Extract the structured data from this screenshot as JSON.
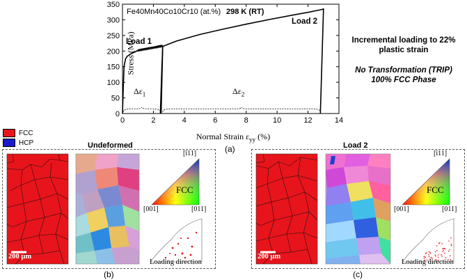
{
  "chart_data": {
    "type": "line",
    "title": "",
    "xlabel": "Normal Strain εyy (%)",
    "ylabel": "Stress (MPa)",
    "xlim": [
      0,
      14
    ],
    "ylim": [
      0,
      350
    ],
    "x_ticks": [
      0,
      2,
      4,
      6,
      8,
      10,
      12,
      14
    ],
    "y_ticks": [
      0,
      50,
      100,
      150,
      200,
      250,
      300,
      350
    ],
    "series": [
      {
        "name": "Load 1",
        "x": [
          0.0,
          0.05,
          0.1,
          0.2,
          0.3,
          0.5,
          0.8,
          1.0,
          1.3,
          1.6,
          2.0,
          2.3,
          2.5,
          2.6,
          2.5
        ],
        "y": [
          0,
          80,
          150,
          175,
          183,
          190,
          197,
          202,
          206,
          209,
          212,
          216,
          218,
          215,
          0
        ]
      },
      {
        "name": "Load 2",
        "x": [
          2.45,
          2.55,
          2.6,
          3.5,
          5.0,
          6.5,
          8.0,
          9.5,
          11.0,
          12.0,
          12.9,
          13.0,
          12.8
        ],
        "y": [
          0,
          150,
          215,
          232,
          253,
          270,
          286,
          301,
          315,
          324,
          333,
          335,
          0
        ]
      }
    ],
    "annotations": [
      "Load 1",
      "Load 2",
      "Δε1",
      "Δε2"
    ]
  },
  "plot": {
    "alloy_label": "Fe40Mn40Co10Cr10 (at.%)",
    "temp_label": "298 K (RT)",
    "load1_label": "Load 1",
    "load2_label": "Load 2",
    "delta1_label": "Δε",
    "delta1_sub": "1",
    "delta2_label": "Δε",
    "delta2_sub": "2",
    "ylabel": "Stress (MPa)",
    "xlabel_main": "Normal Strain ε",
    "xlabel_sub": "yy",
    "xlabel_unit": " (%)",
    "caption": "(a)"
  },
  "notes": {
    "line1": "Incremental loading to 22%",
    "line2": "plastic strain",
    "line3": "No Transformation (TRIP)",
    "line4": "100% FCC Phase"
  },
  "legend": {
    "items": [
      {
        "label": "FCC",
        "color": "#e8141b"
      },
      {
        "label": "HCP",
        "color": "#1a1acc"
      }
    ]
  },
  "panels": {
    "undeformed": {
      "title": "Undeformed",
      "scale_bar": "200 μm",
      "ipf_top": "[ī11]",
      "ipf_left": "[001]",
      "ipf_right": "[011]",
      "ipf_center": "FCC",
      "pf_label": "Loading direction",
      "caption": "(b)"
    },
    "load2": {
      "title": "Load 2",
      "scale_bar": "200 μm",
      "ipf_top": "[ī11]",
      "ipf_left": "[001]",
      "ipf_right": "[011]",
      "ipf_center": "FCC",
      "pf_label": "Loading direction",
      "caption": "(c)"
    }
  }
}
